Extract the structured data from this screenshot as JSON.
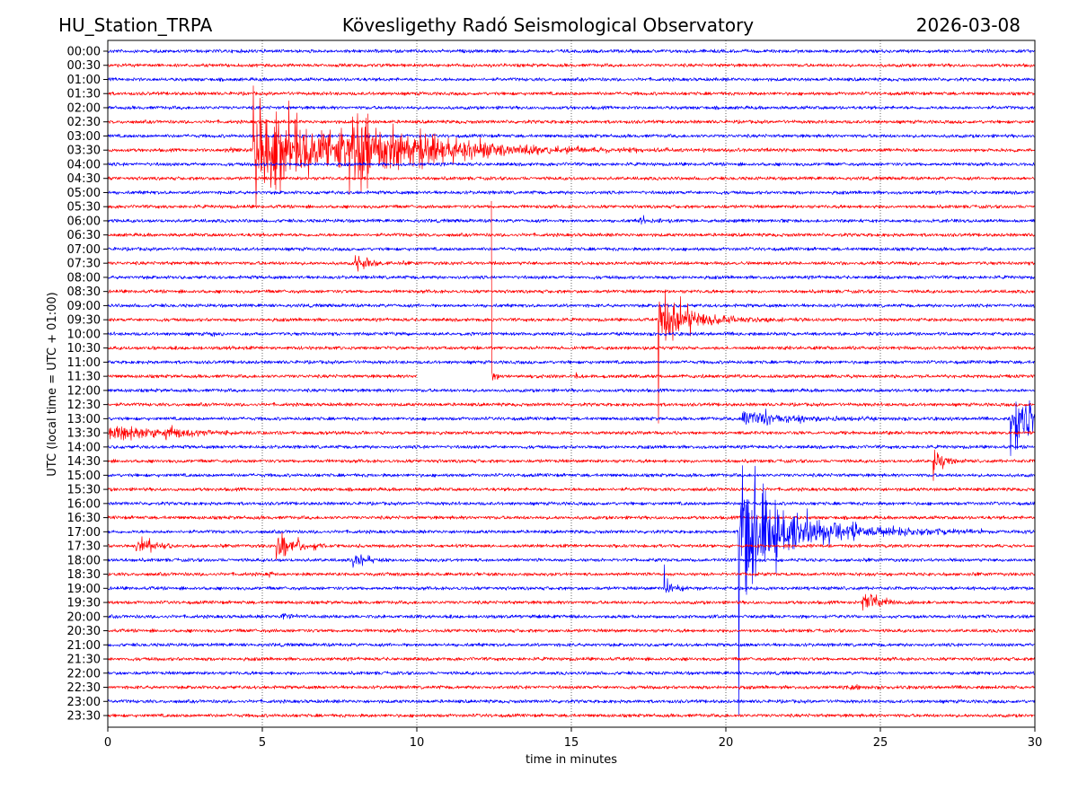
{
  "chart_data": {
    "type": "line",
    "station": "HU_Station_TRPA",
    "title": "Kövesligethy Radó Seismological Observatory",
    "date": "2026-03-08",
    "xlabel": "time in minutes",
    "ylabel": "UTC (local time = UTC + 01:00)",
    "xlim": [
      0,
      30
    ],
    "xticks": [
      "0",
      "5",
      "10",
      "15",
      "20",
      "25",
      "30"
    ],
    "grid": "vertical dotted at each x tick",
    "colors": [
      "#0000ff",
      "#ff0000"
    ],
    "rows": [
      "00:00",
      "00:30",
      "01:00",
      "01:30",
      "02:00",
      "02:30",
      "03:00",
      "03:30",
      "04:00",
      "04:30",
      "05:00",
      "05:30",
      "06:00",
      "06:30",
      "07:00",
      "07:30",
      "08:00",
      "08:30",
      "09:00",
      "09:30",
      "10:00",
      "10:30",
      "11:00",
      "11:30",
      "12:00",
      "12:30",
      "13:00",
      "13:30",
      "14:00",
      "14:30",
      "15:00",
      "15:30",
      "16:00",
      "16:30",
      "17:00",
      "17:30",
      "18:00",
      "18:30",
      "19:00",
      "19:30",
      "20:00",
      "20:30",
      "21:00",
      "21:30",
      "22:00",
      "22:30",
      "23:00",
      "23:30"
    ],
    "noise_amplitude": 1.6,
    "gaps": [
      {
        "row": "11:30",
        "start_min": 10.0,
        "end_min": 12.4
      }
    ],
    "events": [
      {
        "row": "03:30",
        "start_min": 3.7,
        "amp": 4,
        "decay_min": 0.8
      },
      {
        "row": "03:30",
        "start_min": 4.7,
        "amp": 55,
        "decay_min": 3.5,
        "spike_up": 80,
        "spike_down": 60
      },
      {
        "row": "03:30",
        "start_min": 7.8,
        "amp": 45,
        "decay_min": 2.5,
        "spike_up": 78,
        "spike_down": 50
      },
      {
        "row": "06:00",
        "start_min": 17.2,
        "amp": 8,
        "decay_min": 0.4
      },
      {
        "row": "07:30",
        "start_min": 8.0,
        "amp": 10,
        "decay_min": 0.6,
        "spike_up": 10,
        "spike_down": 30
      },
      {
        "row": "09:30",
        "start_min": 17.8,
        "amp": 30,
        "decay_min": 1.3,
        "spike_up": 125,
        "spike_down": 120
      },
      {
        "row": "10:00",
        "start_min": 3.3,
        "amp": 5,
        "decay_min": 0.1
      },
      {
        "row": "10:30",
        "start_min": 1.4,
        "amp": 4,
        "decay_min": 0.1
      },
      {
        "row": "10:30",
        "start_min": 3.9,
        "amp": 4,
        "decay_min": 0.15
      },
      {
        "row": "10:30",
        "start_min": 5.4,
        "amp": 3,
        "decay_min": 0.1
      },
      {
        "row": "11:30",
        "start_min": 12.4,
        "amp": 12,
        "decay_min": 0.15,
        "spike_up": 205,
        "spike_down": 255
      },
      {
        "row": "11:30",
        "start_min": 15.1,
        "amp": 5,
        "decay_min": 0.15
      },
      {
        "row": "13:00",
        "start_min": 20.5,
        "amp": 12,
        "decay_min": 1.8
      },
      {
        "row": "13:00",
        "start_min": 29.2,
        "amp": 28,
        "decay_min": 4,
        "spike_up": 55,
        "spike_down": 45
      },
      {
        "row": "13:30",
        "start_min": 0.0,
        "amp": 18,
        "decay_min": 1.2
      },
      {
        "row": "13:30",
        "start_min": 1.8,
        "amp": 10,
        "decay_min": 1.2
      },
      {
        "row": "14:30",
        "start_min": 26.7,
        "amp": 16,
        "decay_min": 0.4,
        "spike_up": 30,
        "spike_down": 25
      },
      {
        "row": "17:00",
        "start_min": 20.4,
        "amp": 120,
        "decay_min": 0.8,
        "spike_up": 417,
        "spike_down": 230
      },
      {
        "row": "17:00",
        "start_min": 20.9,
        "amp": 32,
        "decay_min": 2.5
      },
      {
        "row": "17:30",
        "start_min": 0.9,
        "amp": 16,
        "decay_min": 0.5
      },
      {
        "row": "17:30",
        "start_min": 5.4,
        "amp": 24,
        "decay_min": 0.6
      },
      {
        "row": "18:00",
        "start_min": 7.9,
        "amp": 12,
        "decay_min": 0.5
      },
      {
        "row": "18:30",
        "start_min": 5.2,
        "amp": 5,
        "decay_min": 0.2
      },
      {
        "row": "19:00",
        "start_min": 18.0,
        "amp": 12,
        "decay_min": 0.4,
        "spike_up": 28
      },
      {
        "row": "19:30",
        "start_min": 24.4,
        "amp": 12,
        "decay_min": 0.8
      },
      {
        "row": "20:00",
        "start_min": 5.6,
        "amp": 6,
        "decay_min": 0.3
      },
      {
        "row": "22:30",
        "start_min": 24.0,
        "amp": 8,
        "decay_min": 0.3
      }
    ]
  }
}
